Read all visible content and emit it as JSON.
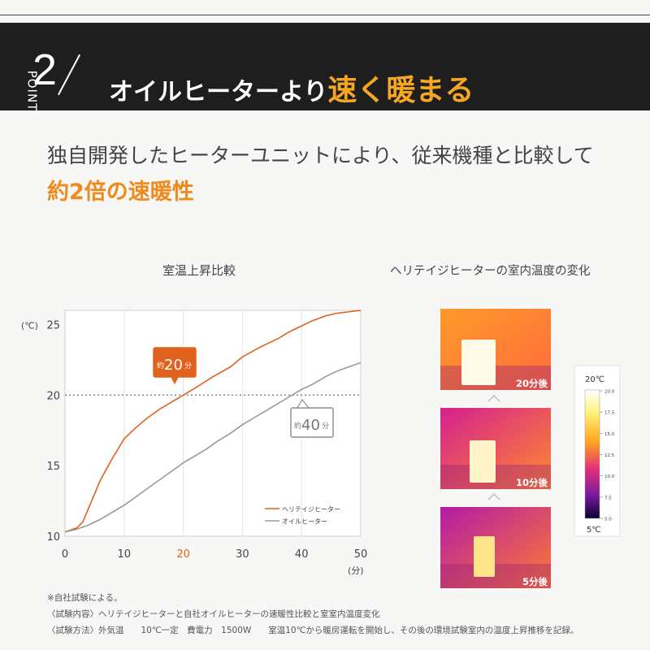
{
  "banner": {
    "point_label": "POINT",
    "point_number": "2",
    "heading_main": "オイルヒーターより",
    "heading_highlight": "速く暖まる"
  },
  "subheading": {
    "line1": "独自開発したヒーターユニットにより、従来機種と比較して",
    "line2": "約2倍の速暖性"
  },
  "chart_data": {
    "type": "line",
    "title": "室温上昇比較",
    "ylabel": "(℃)",
    "xlabel": "(分)",
    "xlim": [
      0,
      50
    ],
    "ylim": [
      10,
      26
    ],
    "x_ticks": [
      0,
      10,
      20,
      30,
      40,
      50
    ],
    "y_ticks": [
      10,
      15,
      20,
      25
    ],
    "reference_line": {
      "y": 20,
      "style": "dotted"
    },
    "series": [
      {
        "name": "ヘリテイジヒーター",
        "color": "#e0621c",
        "x": [
          0,
          2,
          3,
          4,
          5,
          6,
          8,
          10,
          12,
          14,
          16,
          18,
          20,
          22,
          25,
          28,
          30,
          33,
          36,
          38,
          40,
          42,
          44,
          46,
          50
        ],
        "y": [
          10.3,
          10.6,
          11.0,
          12.0,
          13.0,
          14.0,
          15.5,
          16.9,
          17.7,
          18.4,
          19.0,
          19.5,
          20.0,
          20.5,
          21.3,
          22.0,
          22.7,
          23.4,
          24.0,
          24.5,
          24.9,
          25.3,
          25.6,
          25.8,
          26.0
        ]
      },
      {
        "name": "オイルヒーター",
        "color": "#9a9a9a",
        "x": [
          0,
          2,
          4,
          6,
          8,
          10,
          12,
          14,
          16,
          18,
          20,
          22,
          24,
          26,
          28,
          30,
          32,
          34,
          36,
          38,
          40,
          42,
          44,
          46,
          48,
          50
        ],
        "y": [
          10.3,
          10.5,
          10.8,
          11.2,
          11.7,
          12.2,
          12.8,
          13.4,
          14.0,
          14.6,
          15.2,
          15.7,
          16.2,
          16.8,
          17.3,
          17.9,
          18.4,
          18.9,
          19.4,
          19.9,
          20.4,
          20.8,
          21.3,
          21.7,
          22.0,
          22.3
        ]
      }
    ],
    "annotations": [
      {
        "series": "ヘリテイジヒーター",
        "prefix": "約",
        "value": "20",
        "unit": "分",
        "x": 20
      },
      {
        "series": "オイルヒーター",
        "prefix": "約",
        "value": "40",
        "unit": "分",
        "x": 40
      }
    ],
    "legend": "bottom-right"
  },
  "thermal": {
    "title": "ヘリテイジヒーターの室内温度の変化",
    "images": [
      {
        "label": "20分後"
      },
      {
        "label": "10分後"
      },
      {
        "label": "5分後"
      }
    ],
    "scale": {
      "max_label": "20℃",
      "min_label": "5℃",
      "ticks": [
        "20.0",
        "17.5",
        "15.0",
        "12.5",
        "10.0",
        "7.5",
        "5.0"
      ]
    }
  },
  "notes": [
    "※自社試験による。",
    "〈試験内容〉ヘリテイジヒーターと自社オイルヒーターの速暖性比較と室室内温度変化",
    "〈試験方法〉外気温　　10℃一定　費電力　1500W　　室温10℃から暖房運転を開始し、その後の環境試験室内の温度上昇推移を記録。"
  ]
}
